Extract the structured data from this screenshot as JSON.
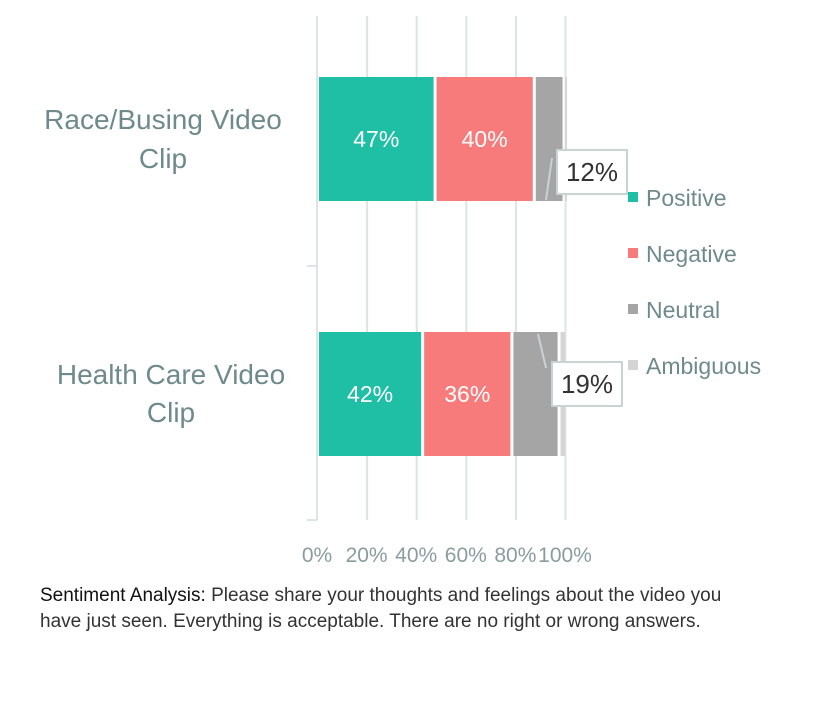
{
  "chart_data": {
    "type": "bar",
    "orientation": "horizontal",
    "stacked": true,
    "categories": [
      "Race/Busing Video Clip",
      "Health Care Video Clip"
    ],
    "series": [
      {
        "name": "Positive",
        "values": [
          47,
          42
        ],
        "color": "#1fbfa5"
      },
      {
        "name": "Negative",
        "values": [
          40,
          36
        ],
        "color": "#f87b7b"
      },
      {
        "name": "Neutral",
        "values": [
          12,
          19
        ],
        "color": "#a5a5a5"
      },
      {
        "name": "Ambiguous",
        "values": [
          1,
          3
        ],
        "color": "#d4d4d4"
      }
    ],
    "data_labels": [
      [
        "47%",
        "40%",
        "12%",
        ""
      ],
      [
        "42%",
        "36%",
        "19%",
        ""
      ]
    ],
    "xlim": [
      0,
      100
    ],
    "x_ticks": [
      "0%",
      "20%",
      "40%",
      "60%",
      "80%",
      "100%"
    ],
    "grid": true,
    "legend": "right"
  },
  "caption": {
    "lead": "Sentiment Analysis:",
    "text": " Please share your thoughts and feelings about the video you have just seen. Everything is acceptable. There are no right or wrong answers."
  }
}
